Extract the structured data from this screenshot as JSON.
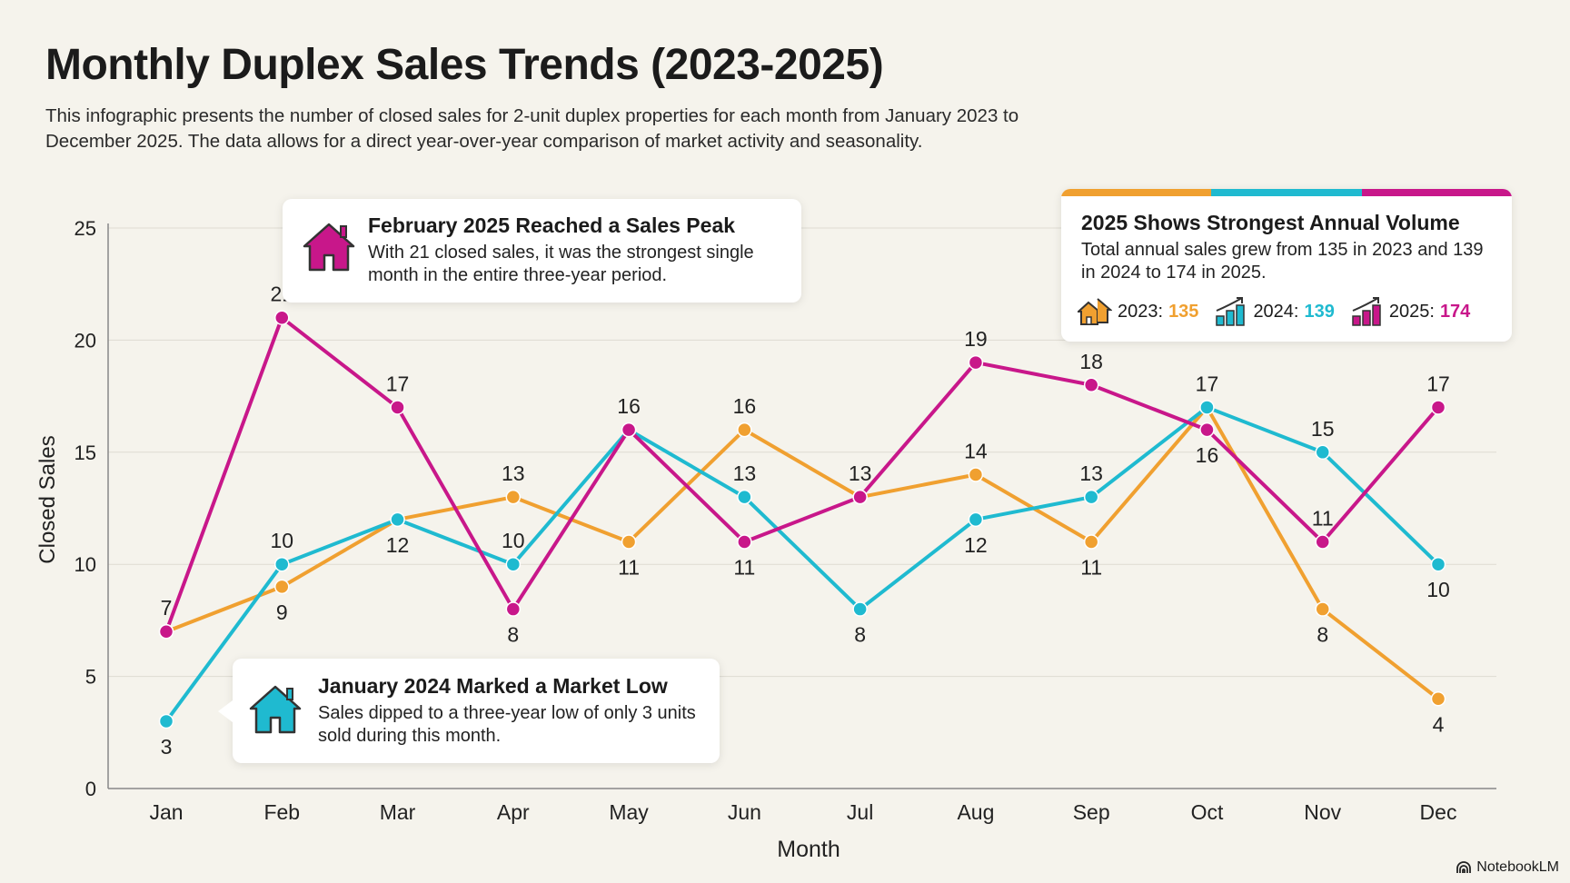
{
  "header": {
    "title": "Monthly Duplex Sales Trends (2023-2025)",
    "subtitle": "This infographic presents the number of closed sales for 2-unit duplex properties for each month from January 2023 to December 2025. The data allows for a direct year-over-year comparison of market activity and seasonality."
  },
  "chart_data": {
    "type": "line",
    "categories": [
      "Jan",
      "Feb",
      "Mar",
      "Apr",
      "May",
      "Jun",
      "Jul",
      "Aug",
      "Sep",
      "Oct",
      "Nov",
      "Dec"
    ],
    "series": [
      {
        "name": "2023",
        "color": "#F0A030",
        "values": [
          7,
          9,
          12,
          13,
          11,
          16,
          13,
          14,
          11,
          17,
          8,
          4
        ]
      },
      {
        "name": "2024",
        "color": "#1FBAD0",
        "values": [
          3,
          10,
          12,
          10,
          16,
          13,
          8,
          12,
          13,
          17,
          15,
          10
        ]
      },
      {
        "name": "2025",
        "color": "#C8178A",
        "values": [
          7,
          21,
          17,
          8,
          16,
          11,
          13,
          19,
          18,
          16,
          11,
          17
        ]
      }
    ],
    "xlabel": "Month",
    "ylabel": "Closed Sales",
    "ylim": [
      0,
      25
    ],
    "yticks": [
      0,
      5,
      10,
      15,
      20,
      25
    ],
    "grid": "horizontal",
    "data_labels": true
  },
  "callouts": {
    "peak": {
      "title": "February 2025 Reached a Sales Peak",
      "body": "With 21 closed sales, it was the strongest single month in the entire three-year period.",
      "icon": "house-icon",
      "color": "#C8178A"
    },
    "low": {
      "title": "January 2024 Marked a Market Low",
      "body": "Sales dipped to a three-year low of only 3 units sold during this month.",
      "icon": "house-icon",
      "color": "#1FBAD0"
    },
    "annual": {
      "title": "2025 Shows Strongest Annual Volume",
      "body": "Total annual sales grew from 135 in 2023 and 139 in 2024 to 174 in 2025.",
      "items": [
        {
          "label": "2023:",
          "value": "135",
          "color": "#F0A030",
          "icon": "houses-icon"
        },
        {
          "label": "2024:",
          "value": "139",
          "color": "#1FBAD0",
          "icon": "bar-chart-up-icon"
        },
        {
          "label": "2025:",
          "value": "174",
          "color": "#C8178A",
          "icon": "bar-chart-up-icon"
        }
      ]
    }
  },
  "branding": {
    "label": "NotebookLM"
  }
}
